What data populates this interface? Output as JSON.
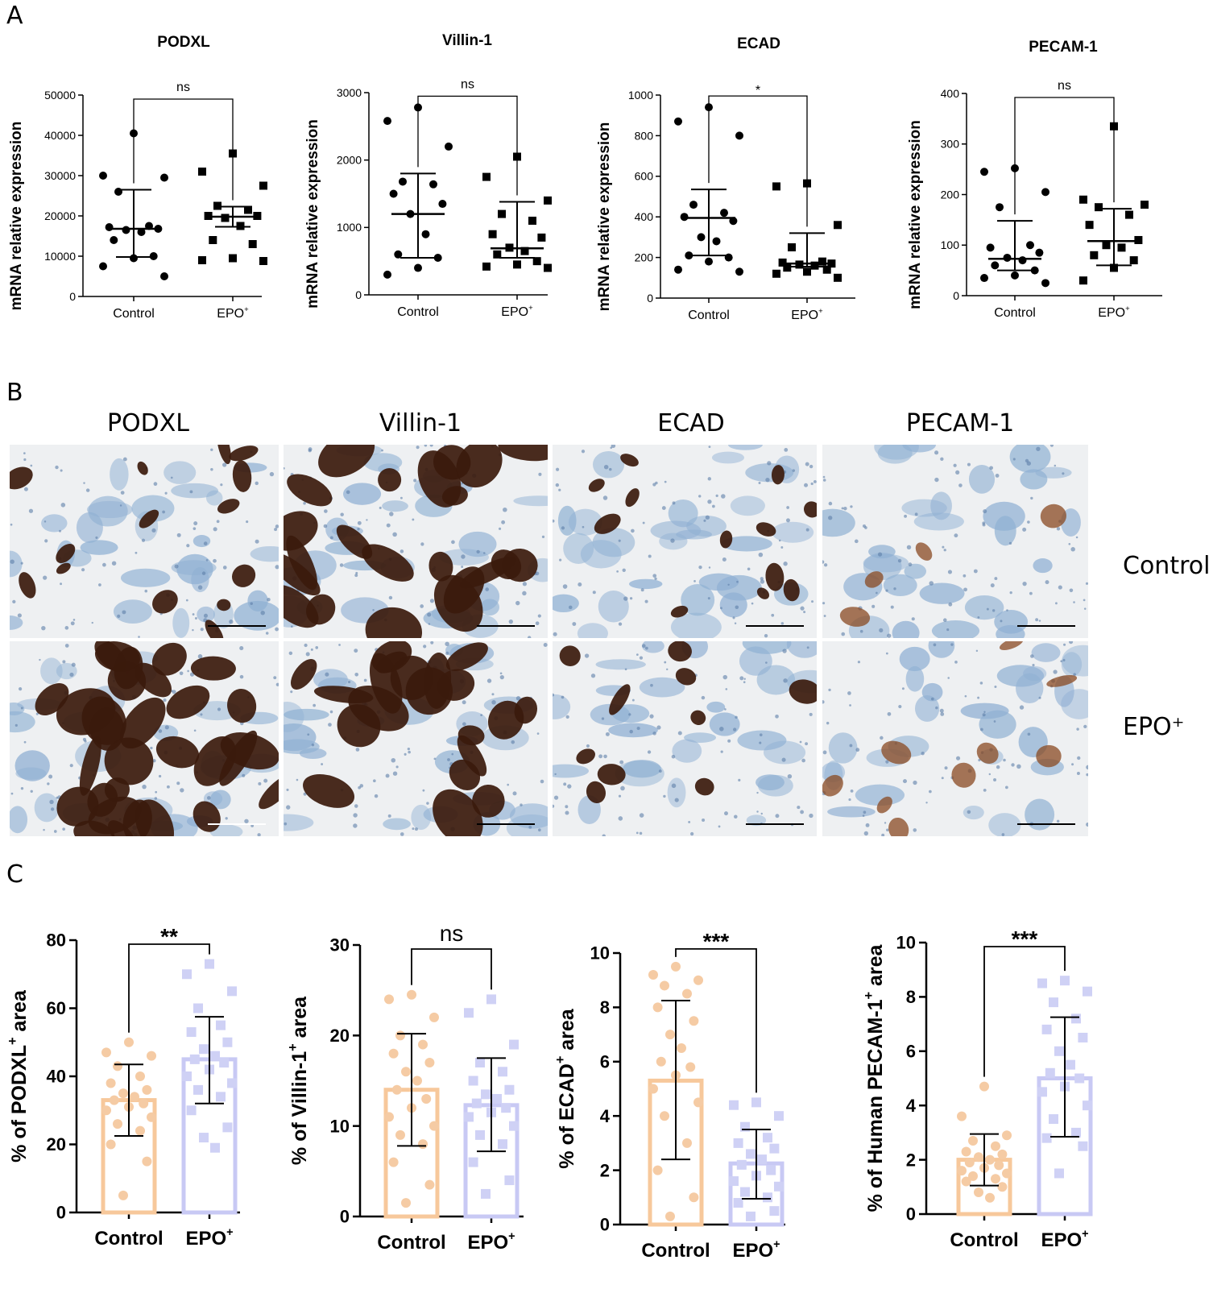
{
  "panels": {
    "a": "A",
    "b": "B",
    "c": "C"
  },
  "colors": {
    "control_bar": "#f7c89b",
    "control_point": "#f5cba4",
    "epo_bar": "#c8c9f4",
    "epo_point": "#cfd1f5",
    "ihc_brown": "#3b1a0c",
    "ihc_blue": "#8fb0d3",
    "ihc_bg": "#eef0f2"
  },
  "panel_b": {
    "columns": [
      "PODXL",
      "Villin-1",
      "ECAD",
      "PECAM-1"
    ],
    "rows": [
      "Control",
      "EPO⁺"
    ]
  },
  "chart_data": [
    {
      "id": "A1",
      "panel": "A",
      "type": "scatter",
      "title": "PODXL",
      "ylabel": "mRNA relative expression",
      "categories": [
        "Control",
        "EPO⁺"
      ],
      "ylim": [
        0,
        50000
      ],
      "yticks": [
        0,
        10000,
        20000,
        30000,
        40000,
        50000
      ],
      "ytick_labels": [
        "0",
        "10000",
        "20000",
        "30000",
        "40000",
        "50000"
      ],
      "significance": "ns",
      "series": [
        {
          "category": "Control",
          "marker": "circle",
          "mean": 16800,
          "err": [
            9800,
            26500
          ],
          "points": [
            40500,
            30000,
            29500,
            26000,
            17500,
            17200,
            16800,
            16500,
            16000,
            14000,
            10000,
            9500,
            7500,
            5000
          ]
        },
        {
          "category": "EPO⁺",
          "marker": "square",
          "mean": 19800,
          "err": [
            17300,
            22300
          ],
          "points": [
            35500,
            31000,
            27500,
            22500,
            21500,
            20000,
            20000,
            19500,
            17500,
            14000,
            13000,
            9500,
            9000,
            8800
          ]
        }
      ]
    },
    {
      "id": "A2",
      "panel": "A",
      "type": "scatter",
      "title": "Villin-1",
      "ylabel": "mRNA relative expression",
      "categories": [
        "Control",
        "EPO⁺"
      ],
      "ylim": [
        0,
        3000
      ],
      "yticks": [
        0,
        1000,
        2000,
        3000
      ],
      "ytick_labels": [
        "0",
        "1000",
        "2000",
        "3000"
      ],
      "significance": "ns",
      "series": [
        {
          "category": "Control",
          "marker": "circle",
          "mean": 1200,
          "err": [
            550,
            1800
          ],
          "points": [
            2780,
            2580,
            2200,
            1680,
            1640,
            1500,
            1350,
            1200,
            900,
            600,
            550,
            400,
            300
          ]
        },
        {
          "category": "EPO⁺",
          "marker": "square",
          "mean": 690,
          "err": [
            550,
            1380
          ],
          "points": [
            2050,
            1750,
            1400,
            1200,
            1100,
            900,
            850,
            700,
            650,
            600,
            500,
            450,
            420,
            400
          ]
        }
      ]
    },
    {
      "id": "A3",
      "panel": "A",
      "type": "scatter",
      "title": "ECAD",
      "ylabel": "mRNA relative expression",
      "categories": [
        "Control",
        "EPO⁺"
      ],
      "ylim": [
        0,
        1000
      ],
      "yticks": [
        0,
        200,
        400,
        600,
        800,
        1000
      ],
      "ytick_labels": [
        "0",
        "200",
        "400",
        "600",
        "800",
        "1000"
      ],
      "significance": "*",
      "series": [
        {
          "category": "Control",
          "marker": "circle",
          "mean": 395,
          "err": [
            210,
            535
          ],
          "points": [
            940,
            870,
            800,
            460,
            420,
            400,
            380,
            300,
            280,
            210,
            200,
            180,
            140,
            130
          ]
        },
        {
          "category": "EPO⁺",
          "marker": "square",
          "mean": 170,
          "err": [
            155,
            320
          ],
          "points": [
            565,
            550,
            360,
            250,
            180,
            175,
            170,
            165,
            160,
            150,
            140,
            130,
            120,
            100
          ]
        }
      ]
    },
    {
      "id": "A4",
      "panel": "A",
      "type": "scatter",
      "title": "PECAM-1",
      "ylabel": "mRNA relative expression",
      "categories": [
        "Control",
        "EPO⁺"
      ],
      "ylim": [
        0,
        400
      ],
      "yticks": [
        0,
        100,
        200,
        300,
        400
      ],
      "ytick_labels": [
        "0",
        "100",
        "200",
        "300",
        "400"
      ],
      "significance": "ns",
      "series": [
        {
          "category": "Control",
          "marker": "circle",
          "mean": 73,
          "err": [
            50,
            148
          ],
          "points": [
            252,
            245,
            205,
            175,
            100,
            95,
            85,
            75,
            70,
            60,
            50,
            40,
            35,
            25
          ]
        },
        {
          "category": "EPO⁺",
          "marker": "square",
          "mean": 108,
          "err": [
            60,
            172
          ],
          "points": [
            335,
            190,
            180,
            175,
            160,
            140,
            110,
            100,
            95,
            80,
            70,
            55,
            30
          ]
        }
      ]
    },
    {
      "id": "C1",
      "panel": "C",
      "type": "bar",
      "ylabel_parts": [
        "% of PODXL",
        "+",
        " area"
      ],
      "categories": [
        "Control",
        "EPO⁺"
      ],
      "ylim": [
        0,
        80
      ],
      "yticks": [
        0,
        20,
        40,
        60,
        80
      ],
      "ytick_labels": [
        "0",
        "20",
        "40",
        "60",
        "80"
      ],
      "significance": "**",
      "series": [
        {
          "category": "Control",
          "value": 33,
          "err": [
            22.5,
            43.5
          ],
          "points": [
            50,
            47,
            46,
            43,
            40,
            38,
            36,
            35,
            34,
            33,
            32,
            31,
            30,
            28,
            26,
            24,
            20,
            15,
            5
          ]
        },
        {
          "category": "EPO⁺",
          "value": 45,
          "err": [
            32,
            57.5
          ],
          "points": [
            73,
            70,
            65,
            60,
            55,
            53,
            50,
            48,
            46,
            45,
            44,
            42,
            40,
            38,
            36,
            34,
            30,
            25,
            22,
            19
          ]
        }
      ]
    },
    {
      "id": "C2",
      "panel": "C",
      "type": "bar",
      "ylabel_parts": [
        "% of Villin-1",
        "+",
        " area"
      ],
      "categories": [
        "Control",
        "EPO⁺"
      ],
      "ylim": [
        0,
        30
      ],
      "yticks": [
        0,
        10,
        20,
        30
      ],
      "ytick_labels": [
        "0",
        "10",
        "20",
        "30"
      ],
      "significance": "ns",
      "series": [
        {
          "category": "Control",
          "value": 14,
          "err": [
            7.8,
            20.2
          ],
          "points": [
            24.5,
            24,
            22,
            20,
            19,
            18,
            17,
            16,
            15,
            14,
            13,
            12,
            11,
            10,
            9,
            8,
            6,
            3.5,
            1.5
          ]
        },
        {
          "category": "EPO⁺",
          "value": 12.3,
          "err": [
            7.2,
            17.5
          ],
          "points": [
            24,
            22.5,
            19,
            17,
            16,
            15,
            14,
            13.5,
            13,
            12.5,
            12,
            11.5,
            11,
            10,
            9,
            8,
            6,
            4,
            2.5
          ]
        }
      ]
    },
    {
      "id": "C3",
      "panel": "C",
      "type": "bar",
      "ylabel_parts": [
        "% of ECAD",
        "+",
        " area"
      ],
      "categories": [
        "Control",
        "EPO⁺"
      ],
      "ylim": [
        0,
        10
      ],
      "yticks": [
        0,
        2,
        4,
        6,
        8,
        10
      ],
      "ytick_labels": [
        "0",
        "2",
        "4",
        "6",
        "8",
        "10"
      ],
      "significance": "***",
      "series": [
        {
          "category": "Control",
          "value": 5.3,
          "err": [
            2.4,
            8.25
          ],
          "points": [
            9.5,
            9.2,
            9.0,
            8.8,
            8.5,
            8.0,
            7.5,
            7.0,
            6.5,
            6.0,
            5.8,
            5.5,
            5.0,
            4.5,
            4.0,
            3.0,
            2.0,
            1.0,
            0.3
          ]
        },
        {
          "category": "EPO⁺",
          "value": 2.25,
          "err": [
            0.95,
            3.5
          ],
          "points": [
            4.5,
            4.4,
            4.0,
            3.6,
            3.2,
            3.0,
            2.8,
            2.6,
            2.4,
            2.2,
            2.0,
            1.8,
            1.6,
            1.4,
            1.2,
            1.0,
            0.8,
            0.5,
            0.3
          ]
        }
      ]
    },
    {
      "id": "C4",
      "panel": "C",
      "type": "bar",
      "ylabel_parts": [
        "% of Human PECAM-1",
        "+",
        " area"
      ],
      "categories": [
        "Control",
        "EPO⁺"
      ],
      "ylim": [
        0,
        10
      ],
      "yticks": [
        0,
        2,
        4,
        6,
        8,
        10
      ],
      "ytick_labels": [
        "0",
        "2",
        "4",
        "6",
        "8",
        "10"
      ],
      "significance": "***",
      "series": [
        {
          "category": "Control",
          "value": 2.0,
          "err": [
            1.05,
            2.95
          ],
          "points": [
            4.7,
            3.6,
            2.9,
            2.7,
            2.5,
            2.3,
            2.2,
            2.1,
            2.0,
            1.9,
            1.8,
            1.7,
            1.6,
            1.5,
            1.4,
            1.3,
            1.2,
            1.0,
            0.8,
            0.6
          ]
        },
        {
          "category": "EPO⁺",
          "value": 5.0,
          "err": [
            2.85,
            7.25
          ],
          "points": [
            8.6,
            8.5,
            8.2,
            7.8,
            7.2,
            6.8,
            6.5,
            6.0,
            5.5,
            5.2,
            5.0,
            4.7,
            4.5,
            4.0,
            3.5,
            3.0,
            2.8,
            2.5,
            1.5
          ]
        }
      ]
    }
  ]
}
